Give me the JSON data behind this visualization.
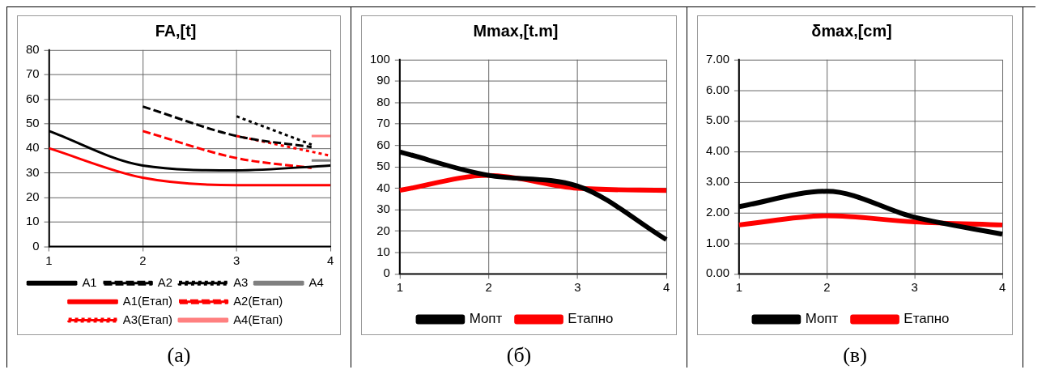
{
  "chart_data": [
    {
      "type": "line",
      "title": "FA,[t]",
      "xlim": [
        1,
        4
      ],
      "xticks": [
        1,
        2,
        3,
        4
      ],
      "ylim": [
        0,
        80
      ],
      "yticks": [
        0,
        10,
        20,
        30,
        40,
        50,
        60,
        70,
        80
      ],
      "grid": true,
      "legend": "bottom",
      "marker": "none",
      "annotations": [
        "(а)"
      ],
      "series": [
        {
          "name": "A1",
          "color": "#000000",
          "line_style": "solid",
          "x": [
            1,
            2,
            3,
            4
          ],
          "values": [
            47,
            33,
            31,
            33
          ]
        },
        {
          "name": "A2",
          "color": "#000000",
          "line_style": "dashed",
          "x": [
            2,
            3,
            3.8
          ],
          "values": [
            57,
            45,
            40.5
          ]
        },
        {
          "name": "A3",
          "color": "#000000",
          "line_style": "dotted",
          "x": [
            3,
            3.8
          ],
          "values": [
            53,
            41.5
          ]
        },
        {
          "name": "A4",
          "color": "#808080",
          "line_style": "solid",
          "x": [
            3.8,
            4
          ],
          "values": [
            35,
            35
          ]
        },
        {
          "name": "A1(Етап)",
          "color": "#ff0000",
          "line_style": "solid",
          "x": [
            1,
            2,
            3,
            4
          ],
          "values": [
            40,
            28,
            25,
            25
          ]
        },
        {
          "name": "A2(Етап)",
          "color": "#ff0000",
          "line_style": "dashed",
          "x": [
            2,
            3,
            3.8
          ],
          "values": [
            47,
            36,
            32
          ]
        },
        {
          "name": "A3(Етап)",
          "color": "#ff0000",
          "line_style": "dotted",
          "x": [
            3,
            4
          ],
          "values": [
            45,
            37
          ]
        },
        {
          "name": "A4(Етап)",
          "color": "#ff8080",
          "line_style": "solid",
          "x": [
            3.8,
            4
          ],
          "values": [
            45,
            45
          ]
        }
      ]
    },
    {
      "type": "line",
      "title": "Mmax,[t.m]",
      "categories": [
        "1",
        "2",
        "3",
        "4"
      ],
      "ylim": [
        0,
        100
      ],
      "yticks": [
        0,
        10,
        20,
        30,
        40,
        50,
        60,
        70,
        80,
        90,
        100
      ],
      "grid": true,
      "legend": "bottom",
      "marker": "none",
      "annotations": [
        "(б)"
      ],
      "series": [
        {
          "name": "Мопт",
          "color": "#000000",
          "line_style": "solid",
          "values": [
            57,
            46,
            41,
            16
          ]
        },
        {
          "name": "Етапно",
          "color": "#ff0000",
          "line_style": "solid",
          "values": [
            39,
            46,
            40,
            39
          ]
        }
      ]
    },
    {
      "type": "line",
      "title": "δmax,[cm]",
      "categories": [
        "1",
        "2",
        "3",
        "4"
      ],
      "ylim": [
        0,
        7
      ],
      "yticks": [
        {
          "value": 0,
          "label": "0.00"
        },
        {
          "value": 1,
          "label": "1.00"
        },
        {
          "value": 2,
          "label": "2.00"
        },
        {
          "value": 3,
          "label": "3.00"
        },
        {
          "value": 4,
          "label": "4.00"
        },
        {
          "value": 5,
          "label": "5.00"
        },
        {
          "value": 6,
          "label": "6.00"
        },
        {
          "value": 7,
          "label": "7.00"
        }
      ],
      "grid": true,
      "legend": "bottom",
      "marker": "none",
      "annotations": [
        "(в)"
      ],
      "series": [
        {
          "name": "Мопт",
          "color": "#000000",
          "line_style": "solid",
          "values": [
            2.2,
            2.7,
            1.85,
            1.3
          ]
        },
        {
          "name": "Етапно",
          "color": "#ff0000",
          "line_style": "solid",
          "values": [
            1.6,
            1.9,
            1.7,
            1.6
          ]
        }
      ]
    }
  ]
}
